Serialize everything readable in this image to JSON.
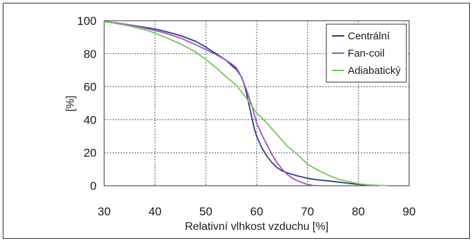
{
  "chart_data": {
    "type": "line",
    "title": "",
    "xlabel": "Relativní vlhkost vzduchu [%]",
    "ylabel": "[%]",
    "xlim": [
      30,
      90
    ],
    "ylim": [
      0,
      100
    ],
    "x_ticks": [
      30,
      40,
      50,
      60,
      70,
      80,
      90
    ],
    "y_ticks": [
      0,
      20,
      40,
      60,
      80,
      100
    ],
    "grid": true,
    "legend_position": "top-right",
    "series": [
      {
        "name": "Centrální",
        "color": "#2e3a87",
        "x": [
          30,
          32,
          35,
          38,
          40,
          42,
          45,
          48,
          50,
          52,
          54,
          55,
          56,
          57,
          57.5,
          58,
          58.5,
          59,
          59.5,
          60,
          61,
          62,
          63,
          64,
          65,
          66,
          68,
          70,
          72,
          74,
          76,
          78,
          80,
          82,
          84
        ],
        "y": [
          99.5,
          98.8,
          97.5,
          96,
          95,
          93.5,
          91,
          87.5,
          84,
          80,
          76,
          73,
          70.5,
          66,
          62,
          56,
          49,
          42,
          35,
          30,
          23,
          18,
          14,
          11,
          9,
          7.8,
          6,
          4.5,
          3.5,
          3,
          2.2,
          1.5,
          0.8,
          0.3,
          0
        ]
      },
      {
        "name": "Fan-coil",
        "color": "#a050b8",
        "x": [
          30,
          32,
          35,
          38,
          40,
          42,
          45,
          48,
          50,
          52,
          54,
          55,
          56,
          57,
          58,
          59,
          60,
          61,
          62,
          63,
          64,
          65,
          66,
          67,
          68,
          69,
          70,
          71,
          72
        ],
        "y": [
          99.5,
          98.8,
          97.5,
          95.5,
          94,
          92.5,
          89.5,
          85.5,
          82.5,
          79.5,
          76,
          74,
          71.5,
          66,
          58,
          49,
          38,
          31,
          25,
          19,
          14,
          10,
          7,
          4.5,
          3,
          1.8,
          0.8,
          0.2,
          0
        ]
      },
      {
        "name": "Adiabatický",
        "color": "#6ec85a",
        "x": [
          30,
          32,
          35,
          38,
          40,
          42,
          45,
          48,
          50,
          52,
          54,
          56,
          58,
          59,
          60,
          62,
          64,
          66,
          68,
          70,
          72,
          74,
          76,
          78,
          80,
          82,
          84,
          86
        ],
        "y": [
          99.5,
          98.5,
          96.8,
          94.5,
          92.5,
          90,
          86,
          81,
          76.5,
          71.5,
          66,
          61,
          53,
          48.5,
          44,
          38,
          31,
          24,
          19,
          13,
          9.5,
          6.5,
          4,
          2.5,
          1.2,
          0.5,
          0.2,
          0
        ]
      }
    ]
  }
}
